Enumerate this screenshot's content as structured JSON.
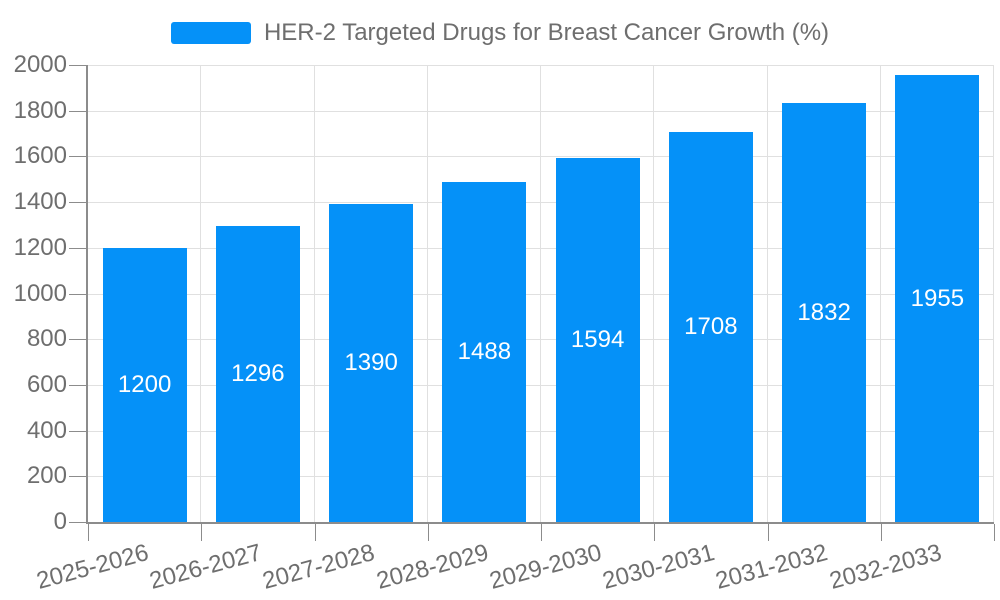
{
  "chart_data": {
    "type": "bar",
    "title": "HER-2 Targeted Drugs for Breast Cancer Growth (%)",
    "categories": [
      "2025-2026",
      "2026-2027",
      "2027-2028",
      "2028-2029",
      "2029-2030",
      "2030-2031",
      "2031-2032",
      "2032-2033"
    ],
    "series": [
      {
        "name": "HER-2 Targeted Drugs for Breast Cancer Growth (%)",
        "values": [
          1200,
          1296,
          1390,
          1488,
          1594,
          1708,
          1832,
          1955
        ],
        "color": "#0591f8"
      }
    ],
    "value_labels": {
      "position": "inside-center",
      "color": "#ffffff"
    },
    "xlabel": "",
    "ylabel": "",
    "ylim": [
      0,
      2000
    ],
    "yticks": [
      0,
      200,
      400,
      600,
      800,
      1000,
      1200,
      1400,
      1600,
      1800,
      2000
    ],
    "x_tick_rotation_deg": 15,
    "grid": true,
    "legend_position": "top-center",
    "style": {
      "background": "#ffffff",
      "grid_color": "#e0e0e0",
      "axis_line_color": "#8c8c8c",
      "tick_label_color": "#6e6e6e",
      "legend_text_color": "#6e6e6e"
    }
  }
}
